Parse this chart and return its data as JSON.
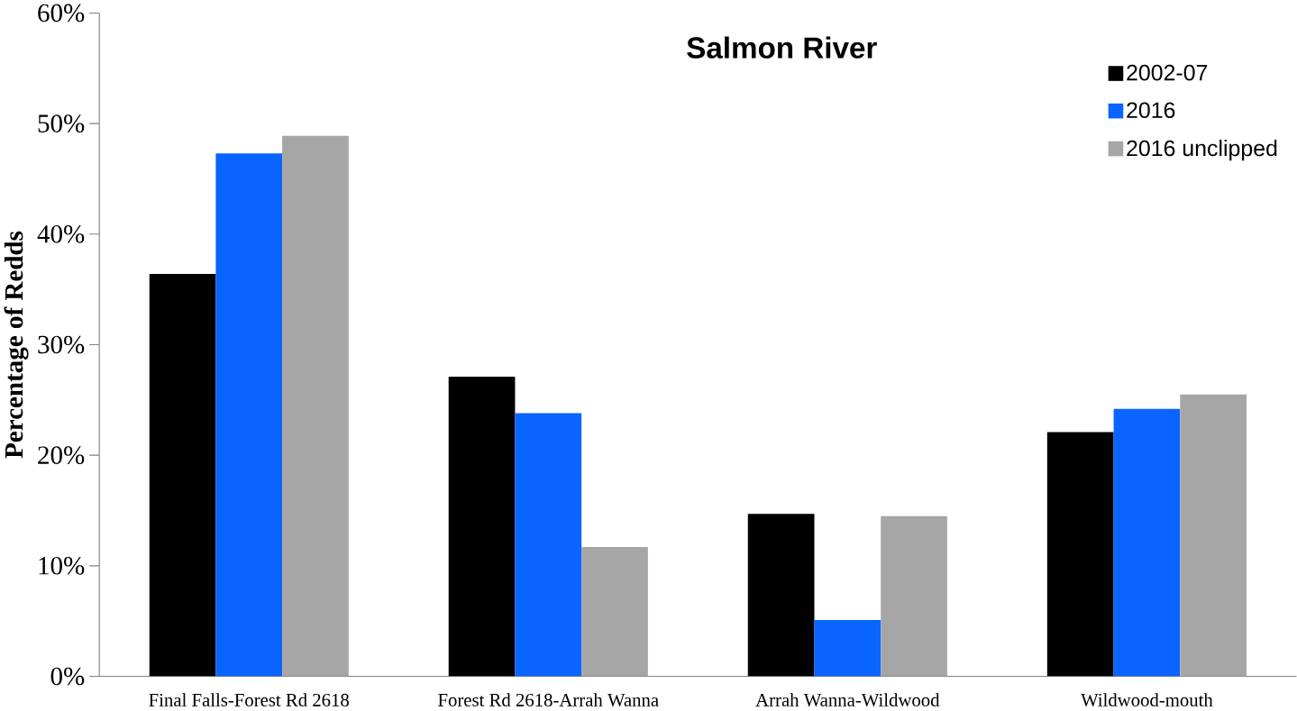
{
  "chart_data": {
    "type": "bar",
    "title": "Salmon River",
    "ylabel": "Percentage of Redds",
    "categories": [
      "Final Falls-Forest Rd 2618",
      "Forest Rd 2618-Arrah Wanna",
      "Arrah Wanna-Wildwood",
      "Wildwood-mouth"
    ],
    "series": [
      {
        "name": "2002-07",
        "color": "#000000",
        "values": [
          36.4,
          27.1,
          14.7,
          22.1
        ]
      },
      {
        "name": "2016",
        "color": "#0a64ff",
        "values": [
          47.3,
          23.8,
          5.1,
          24.2
        ]
      },
      {
        "name": "2016 unclipped",
        "color": "#a6a6a6",
        "values": [
          48.9,
          11.7,
          14.5,
          25.5
        ]
      }
    ],
    "ylim": [
      0,
      60
    ],
    "yticks": [
      {
        "value": 0,
        "label": "0%"
      },
      {
        "value": 10,
        "label": "10%"
      },
      {
        "value": 20,
        "label": "20%"
      },
      {
        "value": 30,
        "label": "30%"
      },
      {
        "value": 40,
        "label": "40%"
      },
      {
        "value": 50,
        "label": "50%"
      },
      {
        "value": 60,
        "label": "60%"
      }
    ],
    "legend": "top right",
    "grid": false
  }
}
